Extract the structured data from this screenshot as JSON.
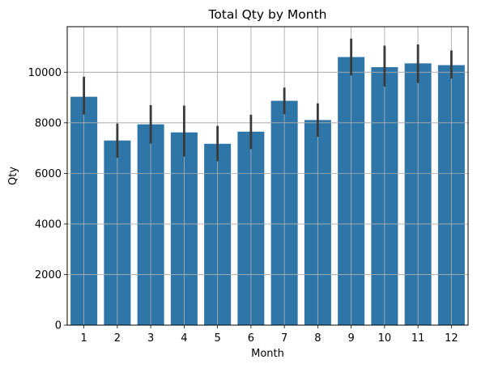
{
  "chart_data": {
    "type": "bar",
    "title": "Total Qty by Month",
    "xlabel": "Month",
    "ylabel": "Qty",
    "categories": [
      "1",
      "2",
      "3",
      "4",
      "5",
      "6",
      "7",
      "8",
      "9",
      "10",
      "11",
      "12"
    ],
    "values": [
      9030,
      7300,
      7940,
      7620,
      7170,
      7650,
      8870,
      8110,
      10600,
      10200,
      10350,
      10280
    ],
    "error_low": [
      8330,
      6620,
      7180,
      6660,
      6480,
      6960,
      8340,
      7450,
      9870,
      9430,
      9570,
      9750
    ],
    "error_high": [
      9820,
      7970,
      8700,
      8680,
      7880,
      8320,
      9390,
      8770,
      11330,
      11050,
      11100,
      10860
    ],
    "ylim": [
      0,
      11800
    ],
    "yticks": [
      0,
      2000,
      4000,
      6000,
      8000,
      10000
    ],
    "grid": true,
    "bar_color": "#2f76a8",
    "error_color": "#3a3a3a",
    "grid_color": "#b0b0b0"
  }
}
